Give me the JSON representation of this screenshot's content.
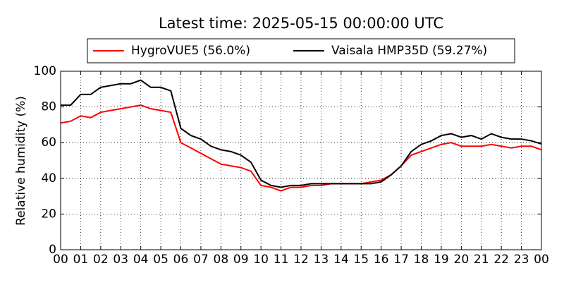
{
  "chart_data": {
    "type": "line",
    "title": "Latest time: 2025-05-15 00:00:00 UTC",
    "ylabel": "Relative humidity (%)",
    "x": [
      0,
      0.5,
      1,
      1.5,
      2,
      2.5,
      3,
      3.5,
      4,
      4.5,
      5,
      5.5,
      6,
      6.5,
      7,
      7.5,
      8,
      8.5,
      9,
      9.5,
      10,
      10.5,
      11,
      11.5,
      12,
      12.5,
      13,
      13.5,
      14,
      14.5,
      15,
      15.5,
      16,
      16.5,
      17,
      17.5,
      18,
      18.5,
      19,
      19.5,
      20,
      20.5,
      21,
      21.5,
      22,
      22.5,
      23,
      23.5,
      24
    ],
    "series": [
      {
        "name": "HygroVUE5 (56.0%)",
        "color": "#ff0000",
        "values": [
          71,
          72,
          75,
          74,
          77,
          78,
          79,
          80,
          81,
          79,
          78,
          77,
          60,
          57,
          54,
          51,
          48,
          47,
          46,
          44,
          36,
          35,
          33,
          35,
          35,
          36,
          36,
          37,
          37,
          37,
          37,
          38,
          39,
          42,
          47,
          53,
          55,
          57,
          59,
          60,
          58,
          58,
          58,
          59,
          58,
          57,
          58,
          58,
          56
        ]
      },
      {
        "name": "Vaisala HMP35D (59.27%)",
        "color": "#000000",
        "values": [
          81,
          81,
          87,
          87,
          91,
          92,
          93,
          93,
          95,
          91,
          91,
          89,
          68,
          64,
          62,
          58,
          56,
          55,
          53,
          49,
          39,
          36,
          35,
          36,
          36,
          37,
          37,
          37,
          37,
          37,
          37,
          37,
          38,
          42,
          47,
          55,
          59,
          61,
          64,
          65,
          63,
          64,
          62,
          65,
          63,
          62,
          62,
          61,
          59.27
        ]
      }
    ],
    "xlim": [
      0,
      24
    ],
    "xticks": [
      {
        "value": 0,
        "label": "00"
      },
      {
        "value": 1,
        "label": "01"
      },
      {
        "value": 2,
        "label": "02"
      },
      {
        "value": 3,
        "label": "03"
      },
      {
        "value": 4,
        "label": "04"
      },
      {
        "value": 5,
        "label": "05"
      },
      {
        "value": 6,
        "label": "06"
      },
      {
        "value": 7,
        "label": "07"
      },
      {
        "value": 8,
        "label": "08"
      },
      {
        "value": 9,
        "label": "09"
      },
      {
        "value": 10,
        "label": "10"
      },
      {
        "value": 11,
        "label": "11"
      },
      {
        "value": 12,
        "label": "12"
      },
      {
        "value": 13,
        "label": "13"
      },
      {
        "value": 14,
        "label": "14"
      },
      {
        "value": 15,
        "label": "15"
      },
      {
        "value": 16,
        "label": "16"
      },
      {
        "value": 17,
        "label": "17"
      },
      {
        "value": 18,
        "label": "18"
      },
      {
        "value": 19,
        "label": "19"
      },
      {
        "value": 20,
        "label": "20"
      },
      {
        "value": 21,
        "label": "21"
      },
      {
        "value": 22,
        "label": "22"
      },
      {
        "value": 23,
        "label": "23"
      },
      {
        "value": 24,
        "label": "00"
      }
    ],
    "ylim": [
      0,
      100
    ],
    "yticks": [
      0,
      20,
      40,
      60,
      80,
      100
    ],
    "grid": true,
    "legend": "top"
  }
}
